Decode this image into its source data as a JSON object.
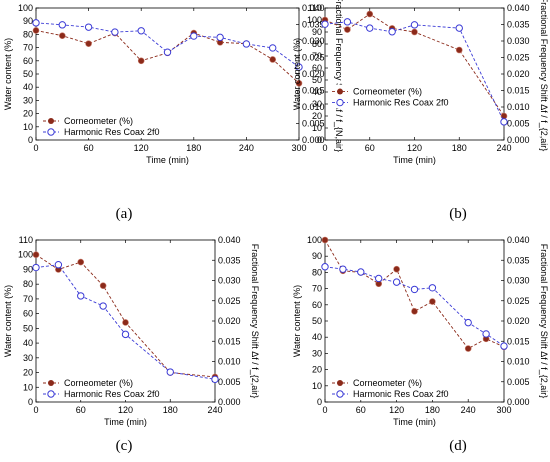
{
  "chart_data": [
    {
      "type": "line",
      "panel_label": "(a)",
      "xlabel": "Time (min)",
      "ylabel": "Water content (%)",
      "y2label": "Fractional Frequency Shift Δf / f_{N,air}",
      "xlim": [
        0,
        300
      ],
      "xticks": [
        0,
        60,
        120,
        180,
        240,
        300
      ],
      "ylim": [
        0,
        100
      ],
      "yticks": [
        0,
        10,
        20,
        30,
        40,
        50,
        60,
        70,
        80,
        90,
        100
      ],
      "y2lim": [
        0,
        0.04
      ],
      "y2ticks": [
        "0.000",
        "0.005",
        "0.010",
        "0.015",
        "0.020",
        "0.025",
        "0.030",
        "0.035",
        "0.040"
      ],
      "legend_position": "bottom-left",
      "series": [
        {
          "name": "Corneometer (%)",
          "axis": "left",
          "color": "#8b2a1a",
          "x": [
            0,
            30,
            60,
            90,
            120,
            150,
            180,
            210,
            240,
            270,
            300
          ],
          "y": [
            83,
            79,
            73,
            81,
            60,
            66,
            81,
            74,
            73,
            61,
            43
          ]
        },
        {
          "name": "Harmonic Res Coax 2f0",
          "axis": "right",
          "color": "#3b3bd6",
          "x": [
            0,
            30,
            60,
            90,
            120,
            150,
            180,
            210,
            240,
            270,
            300
          ],
          "y": [
            0.0355,
            0.0349,
            0.0342,
            0.0327,
            0.0331,
            0.0266,
            0.0315,
            0.0311,
            0.0291,
            0.0279,
            0.0221
          ]
        }
      ]
    },
    {
      "type": "line",
      "panel_label": "(b)",
      "xlabel": "Time (min)",
      "ylabel": "Water content (%)",
      "y2label": "Fractional Frequency Shift Δf / f_{2,air}",
      "xlim": [
        0,
        240
      ],
      "xticks": [
        0,
        60,
        120,
        180,
        240
      ],
      "ylim": [
        0,
        110
      ],
      "yticks": [
        0,
        10,
        20,
        30,
        40,
        50,
        60,
        70,
        80,
        90,
        100,
        110
      ],
      "y2lim": [
        0,
        0.04
      ],
      "y2ticks": [
        "0.000",
        "0.005",
        "0.010",
        "0.015",
        "0.020",
        "0.025",
        "0.030",
        "0.035",
        "0.040"
      ],
      "legend_position": "center-left",
      "series": [
        {
          "name": "Corneometer (%)",
          "axis": "left",
          "color": "#8b2a1a",
          "x": [
            0,
            30,
            60,
            90,
            120,
            180,
            240
          ],
          "y": [
            100,
            92,
            105,
            93,
            90,
            75,
            20
          ]
        },
        {
          "name": "Harmonic Res Coax 2f0",
          "axis": "right",
          "color": "#3b3bd6",
          "x": [
            0,
            30,
            60,
            90,
            120,
            180,
            240
          ],
          "y": [
            0.0351,
            0.0358,
            0.0339,
            0.0328,
            0.0349,
            0.0339,
            0.0055
          ]
        }
      ]
    },
    {
      "type": "line",
      "panel_label": "(c)",
      "xlabel": "Time (min)",
      "ylabel": "Water content (%)",
      "y2label": "Fractional Frequency Shift Δf / f_{2,air}",
      "xlim": [
        0,
        240
      ],
      "xticks": [
        0,
        60,
        120,
        180,
        240
      ],
      "ylim": [
        0,
        110
      ],
      "yticks": [
        0,
        10,
        20,
        30,
        40,
        50,
        60,
        70,
        80,
        90,
        100,
        110
      ],
      "y2lim": [
        0,
        0.04
      ],
      "y2ticks": [
        "0.000",
        "0.005",
        "0.010",
        "0.015",
        "0.020",
        "0.025",
        "0.030",
        "0.035",
        "0.040"
      ],
      "legend_position": "bottom-left",
      "series": [
        {
          "name": "Corneometer (%)",
          "axis": "left",
          "color": "#8b2a1a",
          "x": [
            0,
            30,
            60,
            90,
            120,
            180,
            240
          ],
          "y": [
            100,
            90,
            95,
            79,
            54,
            20,
            17
          ]
        },
        {
          "name": "Harmonic Res Coax 2f0",
          "axis": "right",
          "color": "#3b3bd6",
          "x": [
            0,
            30,
            60,
            90,
            120,
            180,
            240
          ],
          "y": [
            0.0332,
            0.0339,
            0.0262,
            0.0237,
            0.0167,
            0.0074,
            0.0056
          ]
        }
      ]
    },
    {
      "type": "line",
      "panel_label": "(d)",
      "xlabel": "Time (min)",
      "ylabel": "Water content (%)",
      "y2label": "Fractional Frequency Shift Δf / f_{2,air}",
      "xlim": [
        0,
        300
      ],
      "xticks": [
        0,
        60,
        120,
        180,
        240,
        300
      ],
      "ylim": [
        0,
        100
      ],
      "yticks": [
        0,
        10,
        20,
        30,
        40,
        50,
        60,
        70,
        80,
        90,
        100
      ],
      "y2lim": [
        0,
        0.04
      ],
      "y2ticks": [
        "0.000",
        "0.005",
        "0.010",
        "0.015",
        "0.020",
        "0.025",
        "0.030",
        "0.035",
        "0.040"
      ],
      "legend_position": "bottom-left",
      "series": [
        {
          "name": "Corneometer (%)",
          "axis": "left",
          "color": "#8b2a1a",
          "x": [
            0,
            30,
            60,
            90,
            120,
            150,
            180,
            240,
            270,
            300
          ],
          "y": [
            100,
            81,
            80,
            73,
            82,
            56,
            62,
            33,
            39,
            34
          ]
        },
        {
          "name": "Harmonic Res Coax 2f0",
          "axis": "right",
          "color": "#3b3bd6",
          "x": [
            0,
            30,
            60,
            90,
            120,
            150,
            180,
            240,
            270,
            300
          ],
          "y": [
            0.0334,
            0.0328,
            0.0321,
            0.0305,
            0.0296,
            0.0278,
            0.0282,
            0.0196,
            0.0168,
            0.0138
          ]
        }
      ]
    }
  ]
}
